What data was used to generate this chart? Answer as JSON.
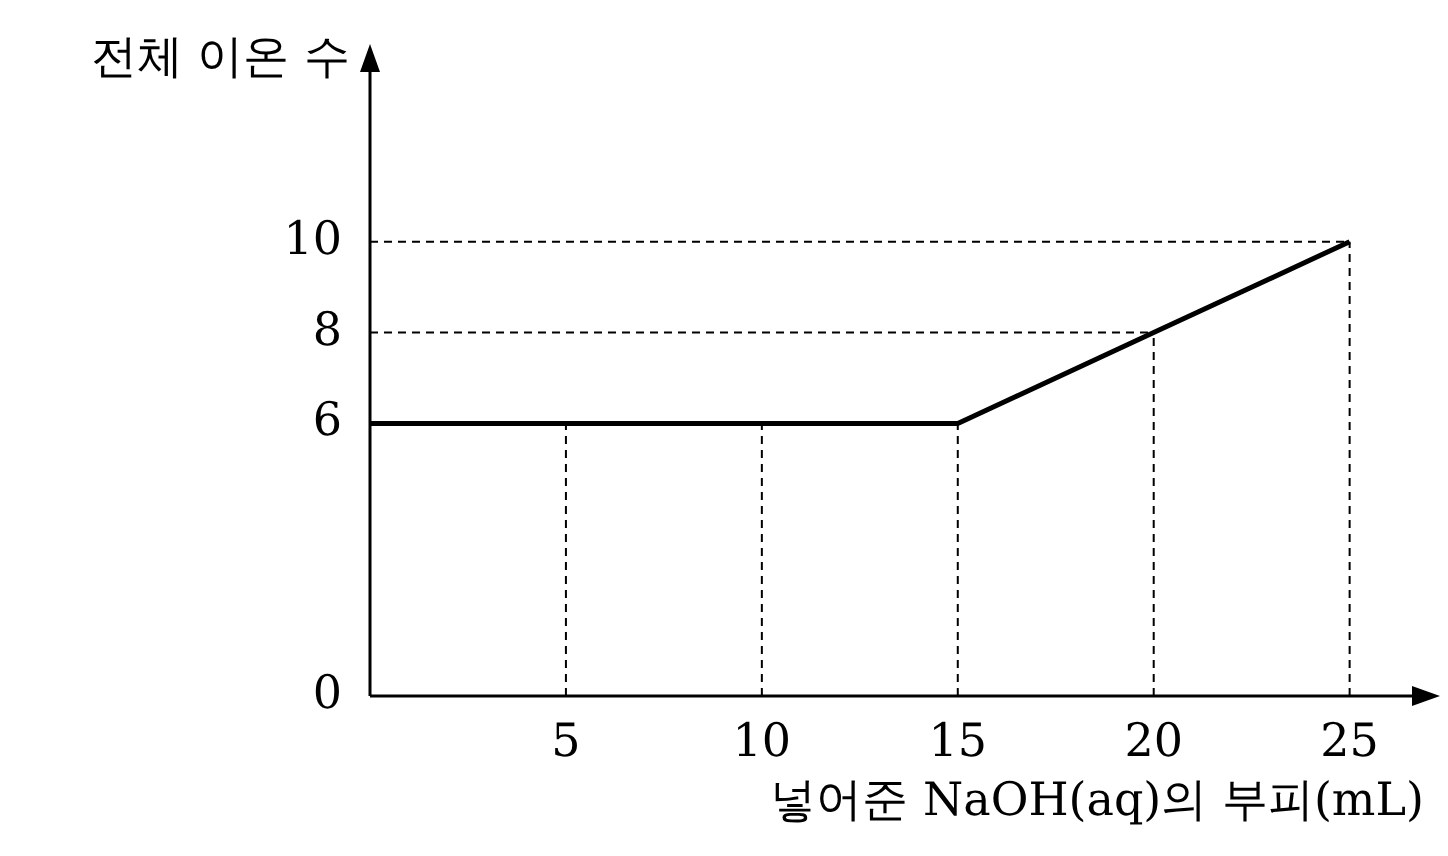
{
  "chart_data": {
    "type": "line",
    "xlabel": "넣어준 NaOH(aq)의 부피(mL)",
    "ylabel": "전체 이온 수",
    "x": [
      0,
      15,
      20,
      25
    ],
    "series": [
      {
        "color": "#000000",
        "values": [
          6,
          6,
          8,
          10
        ]
      }
    ],
    "xlim": [
      0,
      27
    ],
    "xticks": [
      5,
      10,
      15,
      20,
      25
    ],
    "ylim": [
      0,
      14
    ],
    "yticks": [
      0,
      6,
      8,
      10
    ],
    "ref_lines": [
      {
        "axis": "x",
        "value": 5,
        "line_style": "dashed"
      },
      {
        "axis": "x",
        "value": 10,
        "line_style": "dashed"
      },
      {
        "axis": "x",
        "value": 15,
        "line_style": "dashed"
      },
      {
        "axis": "x",
        "value": 20,
        "line_style": "dashed"
      },
      {
        "axis": "x",
        "value": 25,
        "line_style": "dashed"
      },
      {
        "axis": "y",
        "value": 8,
        "line_style": "dashed"
      },
      {
        "axis": "y",
        "value": 10,
        "line_style": "dashed"
      }
    ],
    "grid": false,
    "legend": false,
    "marker": "none",
    "line_style": "solid"
  }
}
